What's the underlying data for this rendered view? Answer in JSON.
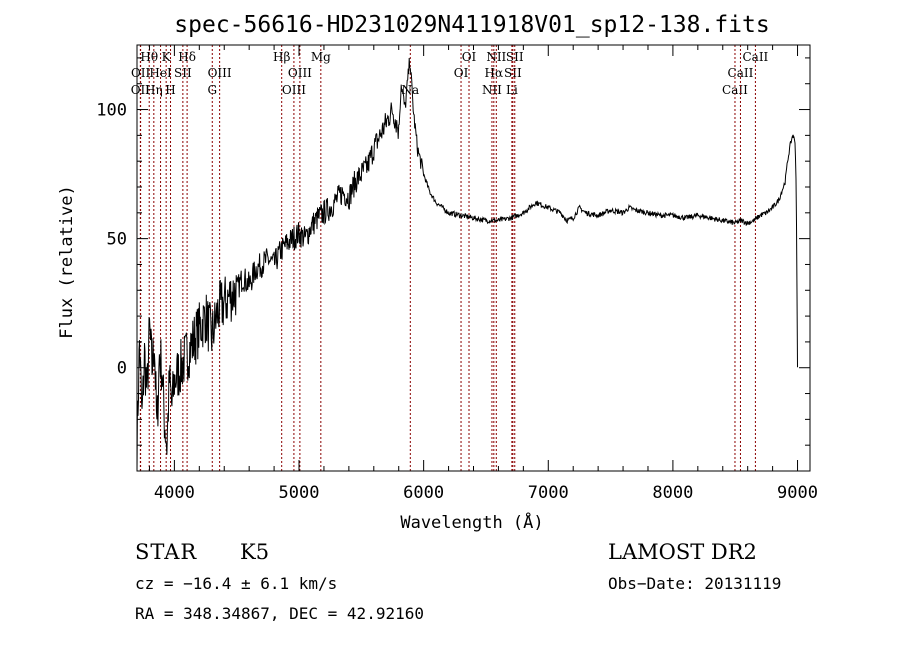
{
  "chart_data": {
    "type": "line",
    "title": "spec-56616-HD231029N411918V01_sp12-138.fits",
    "xlabel": "Wavelength (Å)",
    "ylabel": "Flux (relative)",
    "xlim": [
      3700,
      9100
    ],
    "ylim": [
      -40,
      125
    ],
    "xticks": [
      4000,
      5000,
      6000,
      7000,
      8000,
      9000
    ],
    "yticks": [
      0,
      50,
      100
    ],
    "grid": false,
    "line_color": "#000000",
    "marker_color": "#8b0000",
    "series": [
      {
        "x": [
          3700,
          3720,
          3740,
          3760,
          3780,
          3800,
          3820,
          3840,
          3860,
          3880,
          3900,
          3920,
          3940,
          3960,
          3980,
          4000,
          4050,
          4100,
          4150,
          4200,
          4250,
          4300,
          4350,
          4400,
          4450,
          4500,
          4550,
          4600,
          4650,
          4700,
          4750,
          4800,
          4850,
          4900,
          4950,
          5000,
          5050,
          5100,
          5150,
          5200,
          5250,
          5300,
          5350,
          5400,
          5450,
          5500,
          5550,
          5600,
          5650,
          5700,
          5750,
          5800,
          5820,
          5850,
          5880,
          5890,
          5900,
          5920,
          5950,
          6000,
          6050,
          6100,
          6150,
          6200,
          6300,
          6400,
          6500,
          6600,
          6700,
          6800,
          6850,
          6900,
          7000,
          7100,
          7150,
          7200,
          7250,
          7300,
          7400,
          7500,
          7600,
          7650,
          7700,
          7800,
          7900,
          8000,
          8100,
          8200,
          8300,
          8400,
          8500,
          8550,
          8600,
          8650,
          8700,
          8750,
          8800,
          8850,
          8900,
          8920,
          8940,
          8960,
          8980,
          8990,
          9000
        ],
        "y": [
          -30,
          10,
          -20,
          5,
          -10,
          15,
          0,
          10,
          -25,
          5,
          0,
          -20,
          -30,
          -5,
          -15,
          -5,
          0,
          5,
          10,
          15,
          20,
          12,
          22,
          25,
          28,
          30,
          35,
          32,
          38,
          40,
          42,
          40,
          45,
          48,
          50,
          52,
          50,
          55,
          58,
          60,
          62,
          65,
          68,
          66,
          72,
          75,
          78,
          85,
          90,
          95,
          100,
          92,
          110,
          100,
          115,
          120,
          112,
          98,
          85,
          75,
          68,
          64,
          62,
          60,
          59,
          58,
          57,
          57,
          58,
          60,
          62,
          64,
          62,
          60,
          57,
          58,
          62,
          60,
          59,
          61,
          60,
          62,
          61,
          60,
          59,
          59,
          58,
          59,
          58,
          57,
          56,
          57,
          56,
          57,
          59,
          60,
          62,
          65,
          72,
          80,
          86,
          90,
          88,
          70,
          0
        ]
      }
    ],
    "line_markers": [
      {
        "label": "Hθ",
        "wavelength": 3798,
        "row": 1
      },
      {
        "label": "Hη",
        "wavelength": 3835,
        "row": 3
      },
      {
        "label": "HeI",
        "wavelength": 3889,
        "row": 2
      },
      {
        "label": "K",
        "wavelength": 3934,
        "row": 1
      },
      {
        "label": "H",
        "wavelength": 3969,
        "row": 3
      },
      {
        "label": "SII",
        "wavelength": 4068,
        "row": 2
      },
      {
        "label": "Hδ",
        "wavelength": 4102,
        "row": 1
      },
      {
        "label": "G",
        "wavelength": 4304,
        "row": 3
      },
      {
        "label": "OIII",
        "wavelength": 4363,
        "row": 2
      },
      {
        "label": "Hβ",
        "wavelength": 4861,
        "row": 1
      },
      {
        "label": "OIII",
        "wavelength": 4959,
        "row": 3
      },
      {
        "label": "OIII",
        "wavelength": 5007,
        "row": 2
      },
      {
        "label": "Mg",
        "wavelength": 5175,
        "row": 1
      },
      {
        "label": "Na",
        "wavelength": 5893,
        "row": 3
      },
      {
        "label": "OI",
        "wavelength": 6300,
        "row": 2
      },
      {
        "label": "OI",
        "wavelength": 6364,
        "row": 1
      },
      {
        "label": "NII",
        "wavelength": 6548,
        "row": 3
      },
      {
        "label": "NII",
        "wavelength": 6583,
        "row": 1
      },
      {
        "label": "Hα",
        "wavelength": 6563,
        "row": 2
      },
      {
        "label": "SII",
        "wavelength": 6716,
        "row": 2
      },
      {
        "label": "SII",
        "wavelength": 6731,
        "row": 1
      },
      {
        "label": "Li",
        "wavelength": 6708,
        "row": 3
      },
      {
        "label": "CaII",
        "wavelength": 8498,
        "row": 3
      },
      {
        "label": "CaII",
        "wavelength": 8542,
        "row": 2
      },
      {
        "label": "CaII",
        "wavelength": 8662,
        "row": 1
      }
    ],
    "extra_line_markers": [
      {
        "label": "OII",
        "wavelength": 3727,
        "row": 3
      },
      {
        "label": "OII",
        "wavelength": 3729,
        "row": 2
      }
    ]
  },
  "info": {
    "object_class": "STAR",
    "subclass": "K5",
    "survey": "LAMOST DR2",
    "cz": "cz = −16.4 ± 6.1 km/s",
    "obs_date": "Obs−Date: 20131119",
    "coords": "RA = 348.34867, DEC =  42.92160"
  }
}
